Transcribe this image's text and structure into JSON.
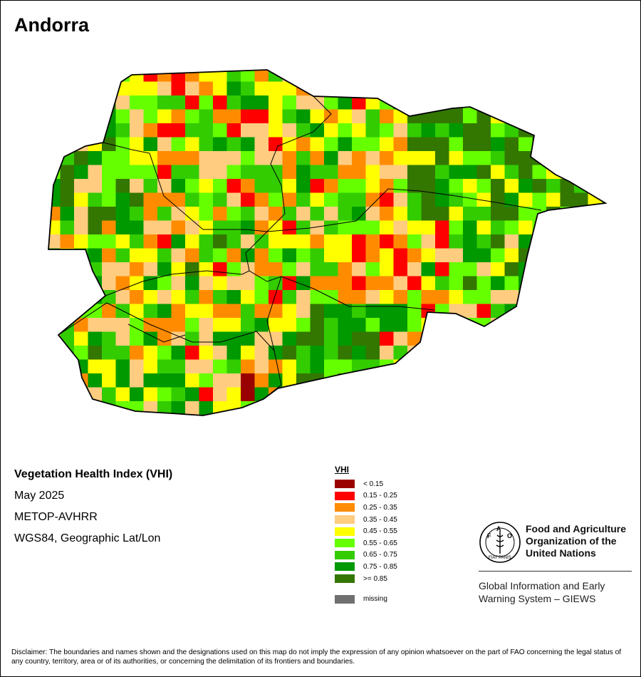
{
  "map": {
    "title": "Andorra",
    "country": "Andorra"
  },
  "metadata": {
    "index_name": "Vegetation Health Index (VHI)",
    "period": "May 2025",
    "sensor": "METOP-AVHRR",
    "projection": "WGS84, Geographic Lat/Lon"
  },
  "legend": {
    "title": "VHI",
    "classes": [
      {
        "label": "< 0.15",
        "color": "#990000"
      },
      {
        "label": "0.15 - 0.25",
        "color": "#ff0000"
      },
      {
        "label": "0.25 - 0.35",
        "color": "#ff8c00"
      },
      {
        "label": "0.35 - 0.45",
        "color": "#ffcc80"
      },
      {
        "label": "0.45 - 0.55",
        "color": "#ffff00"
      },
      {
        "label": "0.55 - 0.65",
        "color": "#66ff00"
      },
      {
        "label": "0.65 - 0.75",
        "color": "#33cc00"
      },
      {
        "label": "0.75 - 0.85",
        "color": "#009900"
      },
      {
        "label": ">= 0.85",
        "color": "#337700"
      }
    ],
    "missing": {
      "label": "missing",
      "color": "#707070"
    }
  },
  "organization": {
    "logo_text": "FAO",
    "logo_motto": "FIAT PANIS",
    "name_lines": [
      "Food and Agriculture",
      "Organization of the",
      "United Nations"
    ],
    "system_lines": [
      "Global Information and Early",
      "Warning System – GIEWS"
    ]
  },
  "disclaimer": "Disclaimer: The boundaries and names shown and the designations used on this map do not imply the expression of any opinion whatsoever on the part of FAO concerning the legal status of any country, territory, area or of its authorities, or concerning the delimitation of its frontiers and boundaries."
}
